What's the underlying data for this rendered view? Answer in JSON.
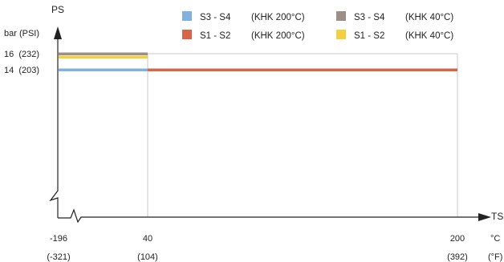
{
  "chart_data": {
    "type": "line",
    "xlabel": "TS",
    "x_unit": "°C",
    "x_unit_alt": "(°F)",
    "ylabel": "PS",
    "y_unit": "bar (PSI)",
    "x_ticks": [
      {
        "value": -196,
        "label": "-196",
        "label_alt": "(-321)"
      },
      {
        "value": 40,
        "label": "40",
        "label_alt": "(104)"
      },
      {
        "value": 200,
        "label": "200",
        "label_alt": "(392)"
      }
    ],
    "y_ticks": [
      {
        "value": 16,
        "label": "16  (232)"
      },
      {
        "value": 14,
        "label": "14  (203)"
      }
    ],
    "series": [
      {
        "name": "S3 - S4",
        "condition": "(KHK 200°C)",
        "color": "#7fb2e0",
        "segments": [
          {
            "x_start": -196,
            "x_end": 200,
            "y": 14
          }
        ]
      },
      {
        "name": "S1 - S2",
        "condition": "(KHK 200°C)",
        "color": "#d8654a",
        "segments": [
          {
            "x_start": -196,
            "x_end": 40,
            "y": 16
          },
          {
            "x_start": 40,
            "x_end": 200,
            "y": 14
          }
        ]
      },
      {
        "name": "S3 - S4",
        "condition": "(KHK 40°C)",
        "color": "#9b8f87",
        "segments": [
          {
            "x_start": -196,
            "x_end": 40,
            "y": 16
          }
        ]
      },
      {
        "name": "S1 - S2",
        "condition": "(KHK 40°C)",
        "color": "#f3d03e",
        "segments": [
          {
            "x_start": -196,
            "x_end": 40,
            "y": 15.6
          }
        ]
      }
    ]
  }
}
